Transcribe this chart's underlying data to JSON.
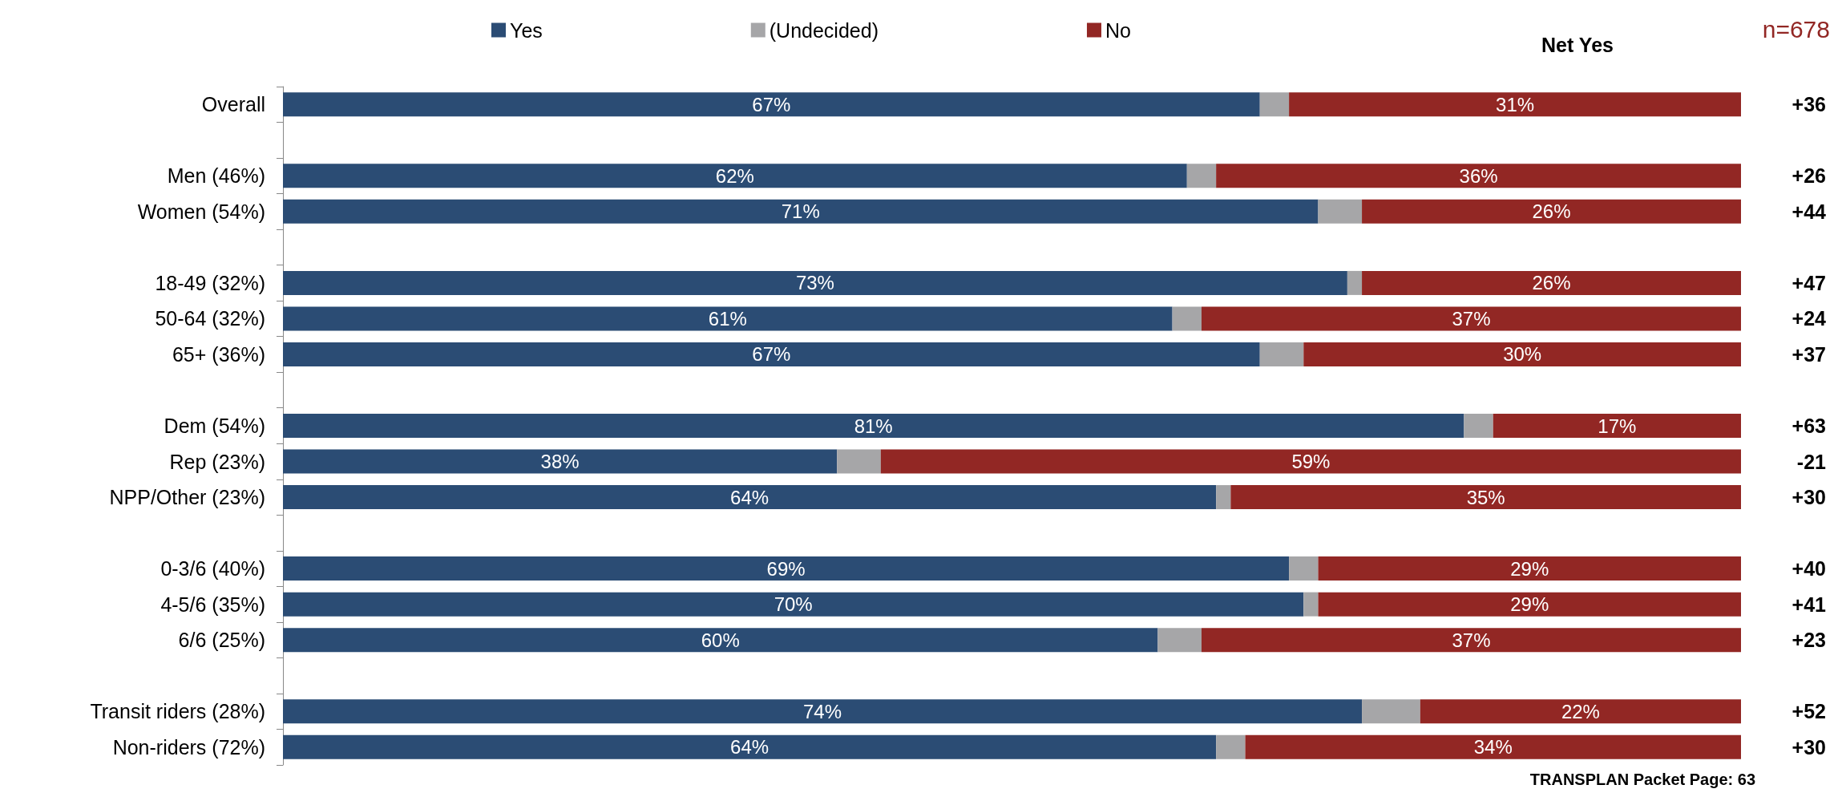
{
  "chart_data": {
    "type": "bar",
    "orientation": "horizontal",
    "stacked": true,
    "legend": "top",
    "tick_labels": "y",
    "xlim": [
      0,
      100
    ],
    "categories": [
      "Overall",
      null,
      "Men (46%)",
      "Women (54%)",
      null,
      "18-49 (32%)",
      "50-64 (32%)",
      "65+ (36%)",
      null,
      "Dem (54%)",
      "Rep (23%)",
      "NPP/Other (23%)",
      null,
      "0-3/6 (40%)",
      "4-5/6 (35%)",
      "6/6 (25%)",
      null,
      "Transit riders (28%)",
      "Non-riders (72%)"
    ],
    "series": [
      {
        "name": "Yes",
        "color": "#2b4c74",
        "values": [
          67,
          null,
          62,
          71,
          null,
          73,
          61,
          67,
          null,
          81,
          38,
          64,
          null,
          69,
          70,
          60,
          null,
          74,
          64
        ],
        "value_labels": [
          "67%",
          null,
          "62%",
          "71%",
          null,
          "73%",
          "61%",
          "67%",
          null,
          "81%",
          "38%",
          "64%",
          null,
          "69%",
          "70%",
          "60%",
          null,
          "74%",
          "64%"
        ]
      },
      {
        "name": "(Undecided)",
        "color": "#a6a6a8",
        "values": [
          2,
          null,
          2,
          3,
          null,
          1,
          2,
          3,
          null,
          2,
          3,
          1,
          null,
          2,
          1,
          3,
          null,
          4,
          2
        ]
      },
      {
        "name": "No",
        "color": "#922724",
        "values": [
          31,
          null,
          36,
          26,
          null,
          26,
          37,
          30,
          null,
          17,
          59,
          35,
          null,
          29,
          29,
          37,
          null,
          22,
          34
        ],
        "value_labels": [
          "31%",
          null,
          "36%",
          "26%",
          null,
          "26%",
          "37%",
          "30%",
          null,
          "17%",
          "59%",
          "35%",
          null,
          "29%",
          "29%",
          "37%",
          null,
          "22%",
          "34%"
        ]
      }
    ],
    "annotations": [
      "Net Yes",
      "n=678",
      "TRANSPLAN Packet Page: 63",
      "+36",
      "+26",
      "+44",
      "+47",
      "+24",
      "+37",
      "+63",
      "-21",
      "+30",
      "+40",
      "+41",
      "+23",
      "+52",
      "+30"
    ]
  }
}
